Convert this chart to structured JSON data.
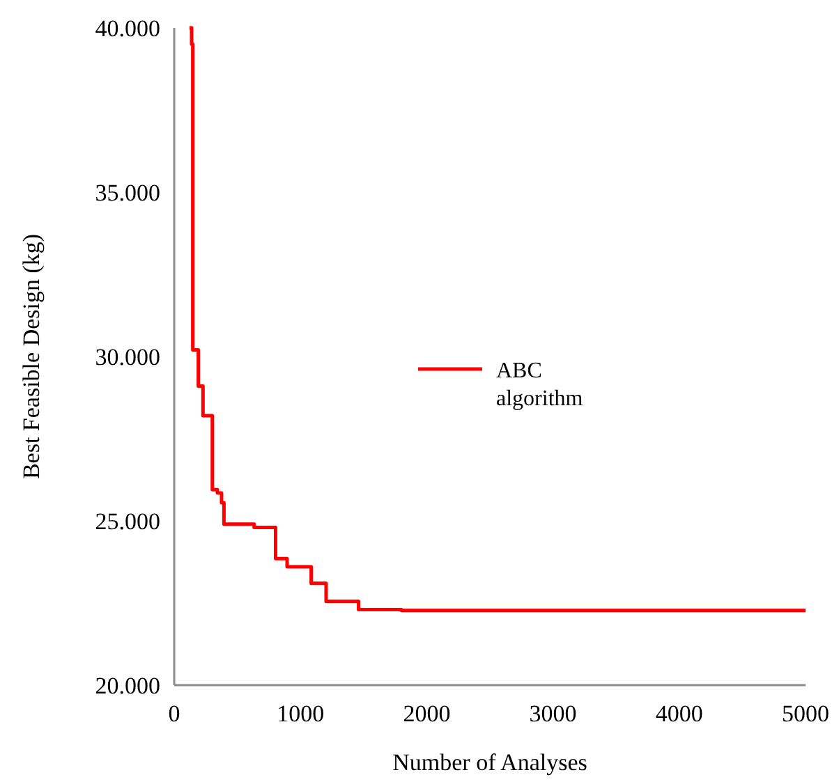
{
  "chart_data": {
    "type": "step",
    "xlabel": "Number of Analyses",
    "ylabel": "Best Feasible Design (kg)",
    "x": [
      121,
      138,
      147,
      191,
      228,
      302,
      342,
      375,
      394,
      633,
      803,
      894,
      1085,
      1203,
      1460,
      1800,
      5000
    ],
    "series": [
      {
        "name": "ABC algorithm",
        "color": "#ff0000",
        "values": [
          40000,
          39500,
          30200,
          29100,
          28200,
          25950,
          25850,
          25550,
          24900,
          24800,
          23850,
          23600,
          23100,
          22550,
          22300,
          22270,
          22270
        ]
      }
    ],
    "xlim": [
      0,
      5000
    ],
    "xticks": [
      0,
      1000,
      2000,
      3000,
      4000,
      5000
    ],
    "ylim": [
      20000,
      40000
    ],
    "yticks": [
      {
        "value": 20000,
        "label": "20.000"
      },
      {
        "value": 25000,
        "label": "25.000"
      },
      {
        "value": 30000,
        "label": "30.000"
      },
      {
        "value": 35000,
        "label": "35.000"
      },
      {
        "value": 40000,
        "label": "40.000"
      }
    ],
    "grid": false,
    "legend": "right",
    "line_style": "solid"
  }
}
